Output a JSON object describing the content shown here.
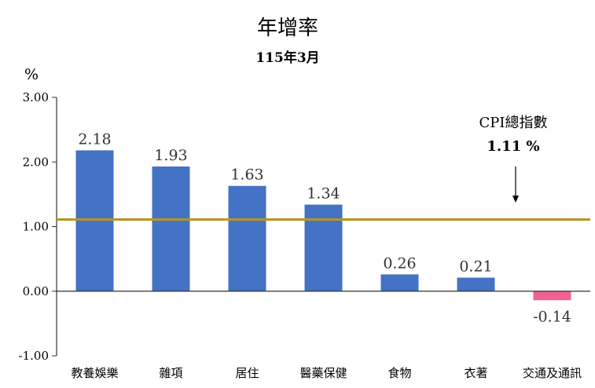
{
  "chart_data": {
    "type": "bar",
    "title": "年增率",
    "subtitle": "115年3月",
    "ylabel": "%",
    "ylim": [
      -1,
      3
    ],
    "ytick_values": [
      -1,
      0,
      1,
      2,
      3
    ],
    "ytick_labels": [
      "-1.00",
      "0.00",
      "1.00",
      "2.00",
      "3.00"
    ],
    "categories": [
      "教養娛樂",
      "雜項",
      "居住",
      "醫藥保健",
      "食物",
      "衣著",
      "交通及通訊"
    ],
    "values": [
      2.18,
      1.93,
      1.63,
      1.34,
      0.26,
      0.21,
      -0.14
    ],
    "value_labels": [
      "2.18",
      "1.93",
      "1.63",
      "1.34",
      "0.26",
      "0.21",
      "-0.14"
    ],
    "reference_line": {
      "label": "CPI總指數",
      "value": 1.11,
      "value_label": "1.11 %"
    },
    "colors": {
      "positive_bar": "#4472C4",
      "negative_bar": "#F06292",
      "reference_line": "#B8961E",
      "axis": "#333333"
    },
    "grid": false,
    "legend": "none"
  }
}
